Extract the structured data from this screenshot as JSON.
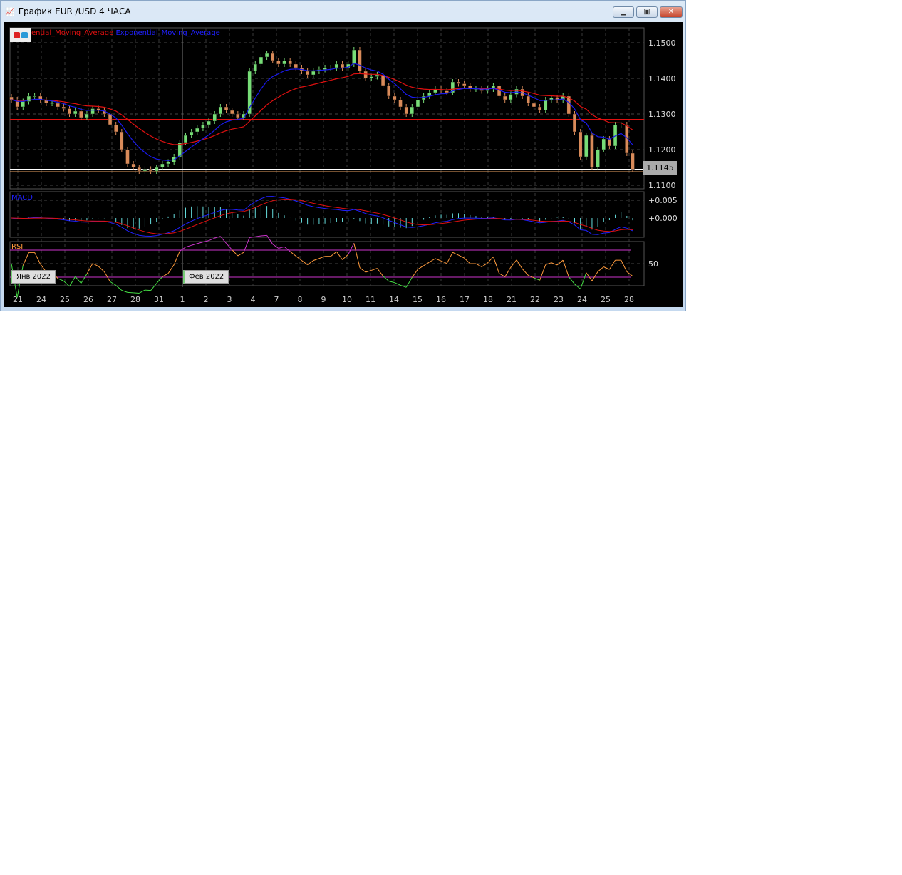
{
  "window": {
    "title": "График EUR /USD  4 ЧАСА",
    "buttons": {
      "minimize": "minimize",
      "maximize": "maximize",
      "close": "close"
    }
  },
  "legend": {
    "ma1": "ential_Moving_Average",
    "ma2": "Exponential_Moving_Average"
  },
  "colors": {
    "ma_slow": "#e01010",
    "ma_fast": "#1a1aee",
    "bull": "#77dd77",
    "bear": "#d98b5a",
    "macd_hist": "#66dddd",
    "rsi": "#ff9a3c",
    "rsi_levels": "#cc33cc",
    "level": "#e01010"
  },
  "panels": {
    "macd_label": "MACD",
    "rsi_label": "RSI"
  },
  "month_tags": [
    "Янв 2022",
    "Фев 2022"
  ],
  "last_price": "1.1145",
  "chart_data": {
    "type": "candlestick",
    "price_axis": {
      "ticks": [
        "1.1500",
        "1.1400",
        "1.1300",
        "1.1200",
        "1.1100"
      ],
      "ylim": [
        1.109,
        1.152
      ]
    },
    "macd_axis": {
      "ticks": [
        "+0.005",
        "+0.000"
      ]
    },
    "rsi_axis": {
      "ticks": [
        "50"
      ],
      "levels": [
        70,
        30
      ]
    },
    "x_ticks": [
      "21",
      "24",
      "25",
      "26",
      "27",
      "28",
      "31",
      "1",
      "2",
      "3",
      "4",
      "7",
      "8",
      "9",
      "10",
      "11",
      "14",
      "15",
      "16",
      "17",
      "18",
      "21",
      "22",
      "23",
      "24",
      "25",
      "28"
    ],
    "horizontal_levels": [
      1.1285,
      1.1145,
      1.114
    ],
    "closes": [
      1.134,
      1.132,
      1.1335,
      1.135,
      1.135,
      1.134,
      1.133,
      1.133,
      1.132,
      1.1315,
      1.13,
      1.1308,
      1.129,
      1.13,
      1.1315,
      1.131,
      1.13,
      1.127,
      1.125,
      1.12,
      1.116,
      1.115,
      1.114,
      1.1145,
      1.114,
      1.115,
      1.116,
      1.1165,
      1.118,
      1.122,
      1.124,
      1.125,
      1.126,
      1.127,
      1.128,
      1.13,
      1.132,
      1.131,
      1.13,
      1.129,
      1.13,
      1.142,
      1.144,
      1.146,
      1.147,
      1.145,
      1.144,
      1.145,
      1.144,
      1.143,
      1.142,
      1.141,
      1.142,
      1.1425,
      1.143,
      1.143,
      1.144,
      1.143,
      1.144,
      1.148,
      1.142,
      1.14,
      1.1405,
      1.141,
      1.138,
      1.135,
      1.134,
      1.132,
      1.13,
      1.132,
      1.134,
      1.135,
      1.136,
      1.137,
      1.1365,
      1.136,
      1.139,
      1.1385,
      1.138,
      1.137,
      1.137,
      1.1365,
      1.137,
      1.138,
      1.135,
      1.134,
      1.1355,
      1.137,
      1.135,
      1.133,
      1.132,
      1.131,
      1.134,
      1.1345,
      1.134,
      1.135,
      1.13,
      1.125,
      1.118,
      1.124,
      1.115,
      1.12,
      1.123,
      1.121,
      1.127,
      1.127,
      1.119,
      1.1145
    ]
  }
}
